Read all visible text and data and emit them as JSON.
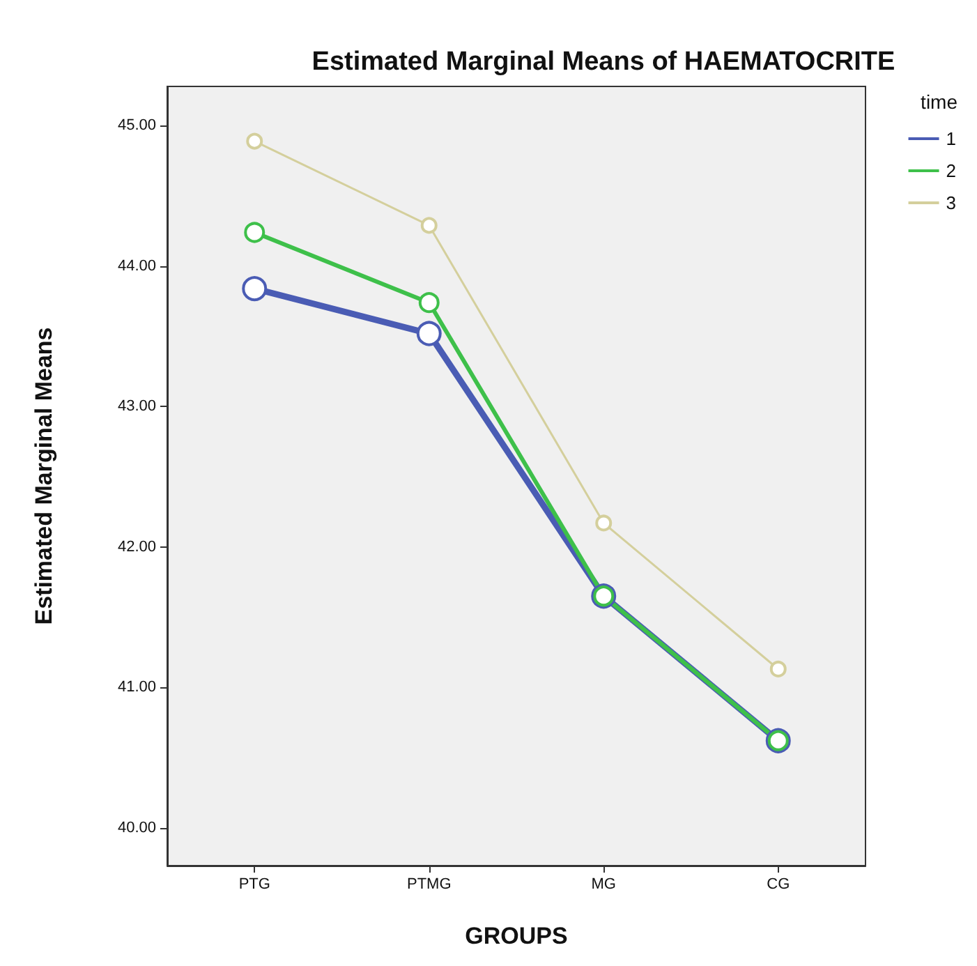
{
  "chart_data": {
    "type": "line",
    "title": "Estimated Marginal Means of HAEMATOCRITE",
    "xlabel": "GROUPS",
    "ylabel": "Estimated Marginal Means",
    "legend_title": "time",
    "categories": [
      "PTG",
      "PTMG",
      "MG",
      "CG"
    ],
    "series": [
      {
        "name": "1",
        "color": "#4a5cb4",
        "values": [
          43.84,
          43.52,
          41.65,
          40.62
        ]
      },
      {
        "name": "2",
        "color": "#3ec04a",
        "values": [
          44.24,
          43.74,
          41.65,
          40.62
        ]
      },
      {
        "name": "3",
        "color": "#d4cf9c",
        "values": [
          44.89,
          44.29,
          42.17,
          41.13
        ]
      }
    ],
    "ylim": [
      39.73,
      45.28
    ],
    "yticks": [
      {
        "value": 40,
        "label": "40.00"
      },
      {
        "value": 41,
        "label": "41.00"
      },
      {
        "value": 42,
        "label": "42.00"
      },
      {
        "value": 43,
        "label": "43.00"
      },
      {
        "value": 44,
        "label": "44.00"
      },
      {
        "value": 45,
        "label": "45.00"
      }
    ],
    "grid": false,
    "legend": "right",
    "marker": "circle",
    "line_style": "solid"
  }
}
